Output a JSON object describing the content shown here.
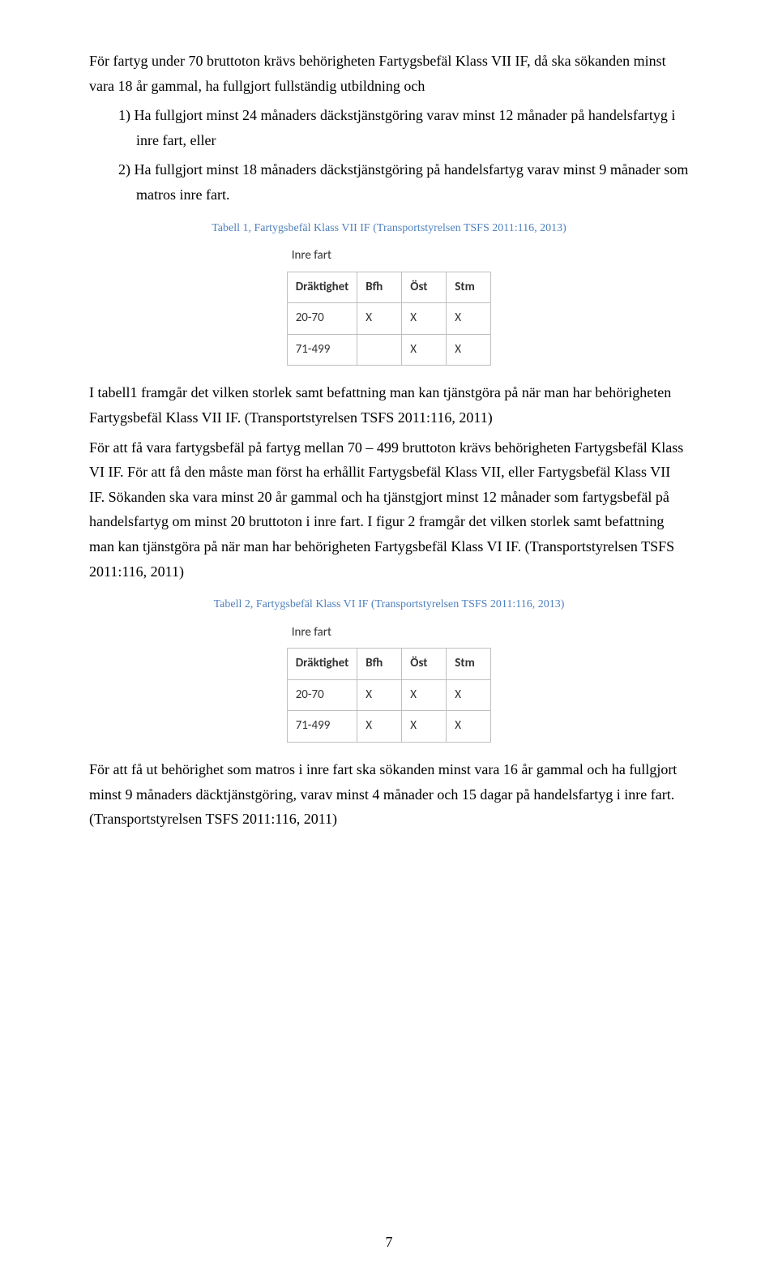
{
  "colors": {
    "body_text": "#000000",
    "caption_text": "#4f81bd",
    "table_border": "#bfbfbf",
    "table_text": "#333333",
    "background": "#ffffff"
  },
  "fonts": {
    "body_family": "Times New Roman",
    "body_size_pt": 12,
    "caption_size_pt": 9,
    "table_family": "Calibri",
    "table_size_pt": 10
  },
  "p1": "För fartyg under 70 bruttoton krävs behörigheten Fartygsbefäl Klass VII IF, då ska sökanden minst vara 18 år gammal, ha fullgjort fullständig utbildning och",
  "li1": "1)  Ha fullgjort minst 24 månaders däckstjänstgöring varav minst 12 månader på handelsfartyg i inre fart, eller",
  "li2": "2)  Ha fullgjort minst 18 månaders däckstjänstgöring på handelsfartyg varav minst 9 månader som matros inre fart.",
  "caption1": "Tabell 1, Fartygsbefäl Klass VII IF (Transportstyrelsen TSFS 2011:116, 2013)",
  "table1": {
    "title": "Inre fart",
    "columns": [
      "Dräktighet",
      "Bfh",
      "Öst",
      "Stm"
    ],
    "rows": [
      [
        "20-70",
        "X",
        "X",
        "X"
      ],
      [
        "71-499",
        "",
        "X",
        "X"
      ]
    ]
  },
  "p2": "I tabell1 framgår det vilken storlek samt befattning man kan tjänstgöra på när man har behörigheten Fartygsbefäl Klass VII IF. (Transportstyrelsen TSFS 2011:116, 2011)",
  "p3": "För att få vara fartygsbefäl på fartyg mellan 70 – 499 bruttoton krävs behörigheten Fartygsbefäl Klass VI IF. För att få den måste man först ha erhållit Fartygsbefäl Klass VII, eller Fartygsbefäl Klass VII IF. Sökanden ska vara minst 20 år gammal och ha tjänstgjort minst 12 månader som fartygsbefäl på handelsfartyg om minst 20 bruttoton i inre fart. I figur 2 framgår det vilken storlek samt befattning man kan tjänstgöra på när man har behörigheten Fartygsbefäl Klass VI IF. (Transportstyrelsen TSFS 2011:116, 2011)",
  "caption2": "Tabell 2, Fartygsbefäl Klass VI IF (Transportstyrelsen TSFS 2011:116, 2013)",
  "table2": {
    "title": "Inre fart",
    "columns": [
      "Dräktighet",
      "Bfh",
      "Öst",
      "Stm"
    ],
    "rows": [
      [
        "20-70",
        "X",
        "X",
        "X"
      ],
      [
        "71-499",
        "X",
        "X",
        "X"
      ]
    ]
  },
  "p4": "För att få ut behörighet som matros i inre fart ska sökanden minst vara 16 år gammal och ha fullgjort minst 9 månaders däcktjänstgöring, varav minst 4 månader och 15 dagar på handelsfartyg i inre fart. (Transportstyrelsen TSFS 2011:116, 2011)",
  "page_number": "7"
}
